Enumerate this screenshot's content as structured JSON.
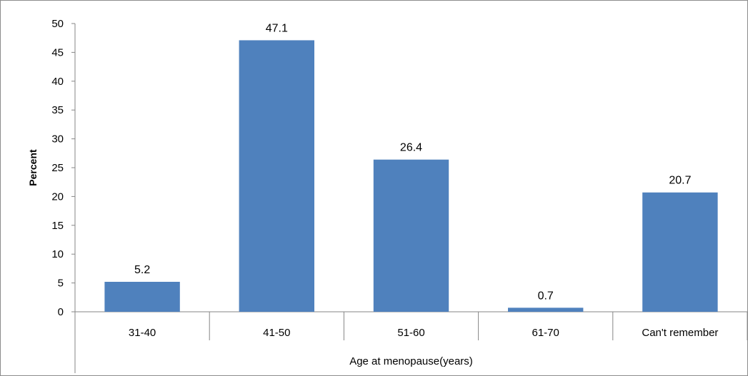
{
  "chart_data": {
    "type": "bar",
    "title": "",
    "xlabel": "Age at menopause(years)",
    "ylabel": "Percent",
    "categories": [
      "31-40",
      "41-50",
      "51-60",
      "61-70",
      "Can't remember"
    ],
    "values": [
      5.2,
      47.1,
      26.4,
      0.7,
      20.7
    ],
    "value_labels": [
      "5.2",
      "47.1",
      "26.4",
      "0.7",
      "20.7"
    ],
    "ylim": [
      0,
      50
    ],
    "yticks": [
      "0",
      "5",
      "10",
      "15",
      "20",
      "25",
      "30",
      "35",
      "40",
      "45",
      "50"
    ],
    "grid": false,
    "legend": "none",
    "bar_color": "#4f81bd"
  }
}
